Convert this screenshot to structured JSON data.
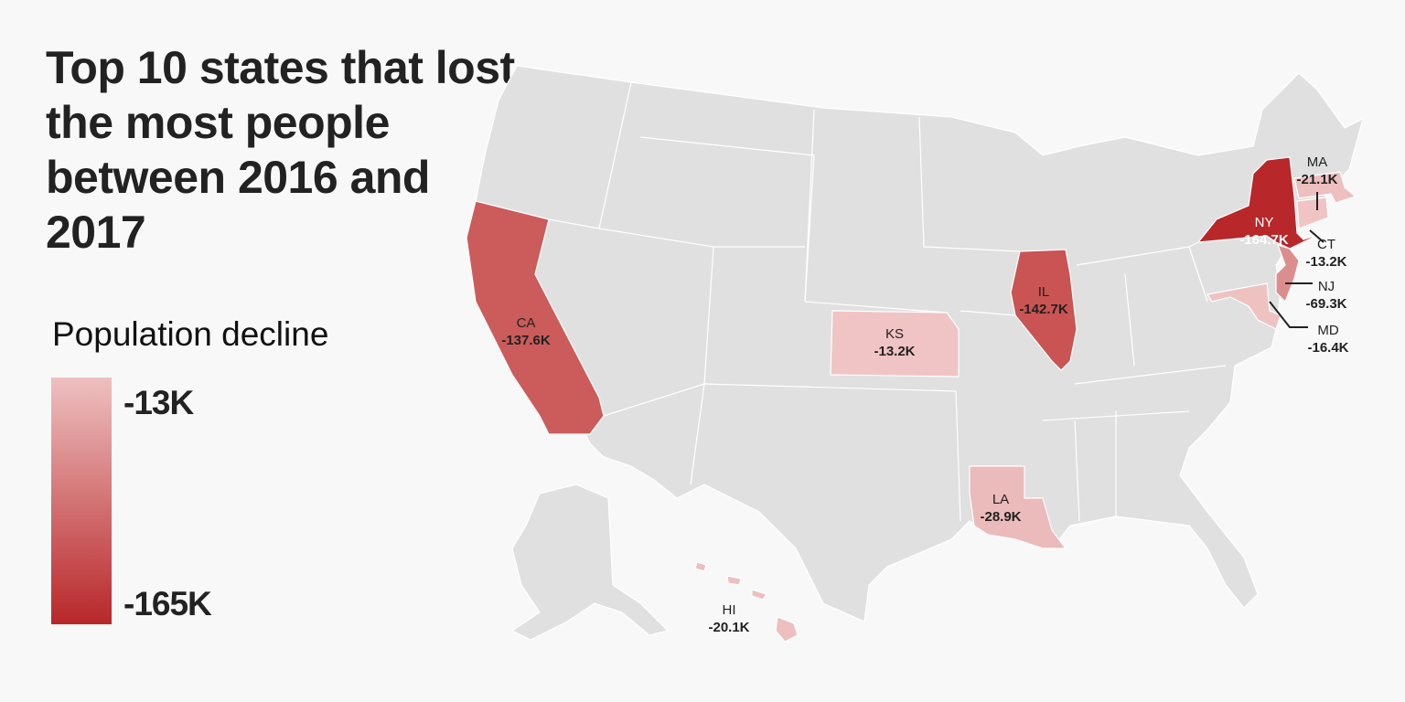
{
  "title": "Top 10 states that lost the most people between 2016 and 2017",
  "legend": {
    "title": "Population decline",
    "min_label": "-13K",
    "max_label": "-165K",
    "color_low": "#eec0c0",
    "color_high": "#b8272a"
  },
  "colors": {
    "base_state": "#e0e0e0",
    "border": "#ffffff",
    "background": "#f8f8f8"
  },
  "states": [
    {
      "abbr": "NY",
      "value": "-164.7K",
      "color": "#b8272a"
    },
    {
      "abbr": "IL",
      "value": "-142.7K",
      "color": "#c95453"
    },
    {
      "abbr": "CA",
      "value": "-137.6K",
      "color": "#cb5c5b"
    },
    {
      "abbr": "NJ",
      "value": "-69.3K",
      "color": "#dc8e8e"
    },
    {
      "abbr": "LA",
      "value": "-28.9K",
      "color": "#ebbaba"
    },
    {
      "abbr": "MA",
      "value": "-21.1K",
      "color": "#eebfbf"
    },
    {
      "abbr": "HI",
      "value": "-20.1K",
      "color": "#eebfbf"
    },
    {
      "abbr": "MD",
      "value": "-16.4K",
      "color": "#efc2c2"
    },
    {
      "abbr": "KS",
      "value": "-13.2K",
      "color": "#f0c4c4"
    },
    {
      "abbr": "CT",
      "value": "-13.2K",
      "color": "#f0c4c4"
    }
  ]
}
